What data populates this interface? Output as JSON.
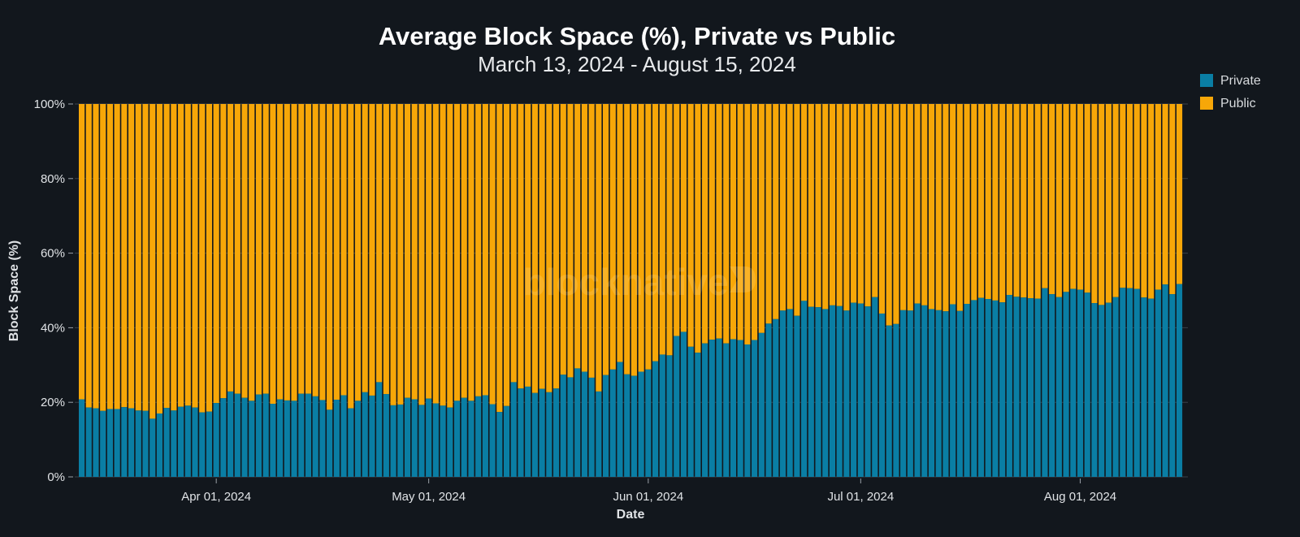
{
  "chart_data": {
    "type": "bar",
    "stacked": true,
    "title": "Average Block Space (%), Private vs Public",
    "subtitle": "March 13, 2024 - August 15, 2024",
    "xlabel": "Date",
    "ylabel": "Block Space (%)",
    "ylim": [
      0,
      100
    ],
    "y_ticks": [
      "0%",
      "20%",
      "40%",
      "60%",
      "80%",
      "100%"
    ],
    "x_ticks": [
      {
        "label": "Apr 01, 2024",
        "index": 19
      },
      {
        "label": "May 01, 2024",
        "index": 49
      },
      {
        "label": "Jun 01, 2024",
        "index": 80
      },
      {
        "label": "Jul 01, 2024",
        "index": 110
      },
      {
        "label": "Aug 01, 2024",
        "index": 141
      }
    ],
    "start_date": "2024-03-13",
    "end_date": "2024-08-15",
    "legend_position": "top-right",
    "watermark": "blocknative",
    "series": [
      {
        "name": "Private",
        "color": "#0a7ea4",
        "values": [
          20.8,
          18.6,
          18.4,
          17.7,
          18.2,
          18.2,
          18.7,
          18.4,
          17.8,
          17.7,
          15.6,
          17,
          18.5,
          17.8,
          18.8,
          19.1,
          18.6,
          17.3,
          17.5,
          19.8,
          21.1,
          22.9,
          22.3,
          21.2,
          20.4,
          22.1,
          22.3,
          19.6,
          20.8,
          20.5,
          20.4,
          22.3,
          22.3,
          21.6,
          20.6,
          18,
          20.7,
          21.9,
          18.4,
          20.4,
          22.7,
          21.8,
          25.4,
          22.2,
          19.2,
          19.4,
          21.2,
          20.8,
          19.3,
          21,
          19.7,
          19.1,
          18.6,
          20.4,
          21.2,
          20.4,
          21.6,
          21.9,
          19.5,
          17.4,
          19,
          25.4,
          23.7,
          24.2,
          22.5,
          23.6,
          22.7,
          23.7,
          27.4,
          26.7,
          29.1,
          28.2,
          26.6,
          22.9,
          27.3,
          28.8,
          30.8,
          27.5,
          27.1,
          28.2,
          28.8,
          31,
          32.8,
          32.6,
          37.8,
          38.9,
          34.9,
          33.3,
          35.8,
          36.8,
          37.1,
          35.8,
          36.9,
          36.7,
          35.5,
          36.7,
          38.6,
          41.1,
          42.3,
          44.6,
          45,
          43.2,
          47.2,
          45.6,
          45.5,
          45,
          46,
          45.8,
          44.6,
          46.7,
          46.5,
          45.7,
          48.2,
          43.8,
          40.6,
          41,
          44.7,
          44.6,
          46.5,
          46,
          45,
          44.7,
          44.4,
          46.3,
          44.5,
          46.4,
          47.4,
          48,
          47.7,
          47.3,
          46.8,
          48.8,
          48.3,
          48.1,
          47.9,
          47.8,
          50.6,
          49,
          48.2,
          49.6,
          50.4,
          50.2,
          49.4,
          46.6,
          46.1,
          46.7,
          48.2,
          50.7,
          50.6,
          50.4,
          48.1,
          47.8,
          50.2,
          51.6,
          49,
          51.7
        ]
      },
      {
        "name": "Public",
        "color": "#f7a708",
        "values": "complement of Private to 100%"
      }
    ]
  }
}
